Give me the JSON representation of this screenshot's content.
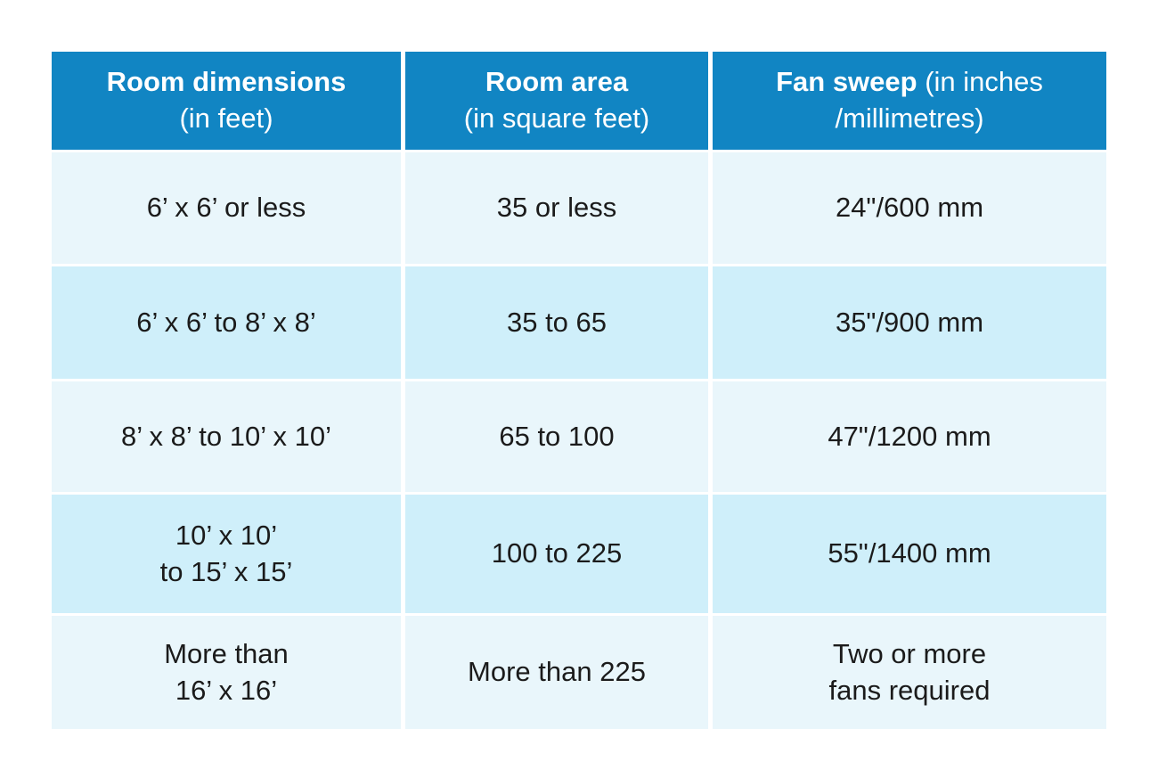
{
  "chart_data": {
    "type": "table",
    "headers": [
      {
        "bold": "Room dimensions",
        "rest": "(in feet)"
      },
      {
        "bold": "Room area",
        "rest": "(in square feet)"
      },
      {
        "bold": "Fan sweep",
        "rest": "(in inches\n/millimetres)"
      }
    ],
    "rows": [
      [
        "6’ x 6’ or less",
        "35 or less",
        "24\"/600 mm"
      ],
      [
        "6’ x 6’ to 8’ x 8’",
        "35 to 65",
        "35\"/900 mm"
      ],
      [
        "8’ x 8’ to 10’ x 10’",
        "65 to 100",
        "47\"/1200 mm"
      ],
      [
        "10’ x 10’\nto 15’ x 15’",
        "100 to 225",
        "55\"/1400 mm"
      ],
      [
        "More than\n16’ x 16’",
        "More than 225",
        "Two or more\nfans required"
      ]
    ],
    "layout_hints": {
      "grid": "off",
      "header_position": "top",
      "alternating_rows": true
    }
  },
  "colors": {
    "header_background": "#1185c3",
    "header_text": "#ffffff",
    "row_light": "#e9f6fb",
    "row_dark": "#cfeffa",
    "body_text": "#1b1b1b",
    "page_background": "#ffffff"
  }
}
